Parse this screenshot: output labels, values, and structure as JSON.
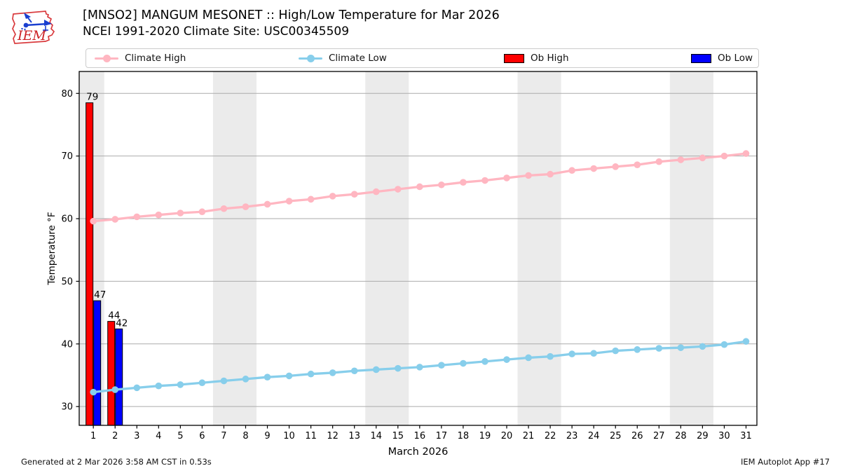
{
  "header": {
    "title": "[MNSO2] MANGUM MESONET :: High/Low Temperature for Mar 2026",
    "subtitle": "NCEI 1991-2020 Climate Site: USC00345509",
    "logo_text": "IEM"
  },
  "legend": [
    {
      "label": "Climate High",
      "type": "line",
      "color": "#ffb6c1"
    },
    {
      "label": "Climate Low",
      "type": "line",
      "color": "#87ceeb"
    },
    {
      "label": "Ob High",
      "type": "patch",
      "color": "#ff0000"
    },
    {
      "label": "Ob Low",
      "type": "patch",
      "color": "#0000ff"
    }
  ],
  "footer": {
    "generated": "Generated at 2 Mar 2026 3:58 AM CST in 0.53s",
    "app": "IEM Autoplot App #17"
  },
  "chart_data": {
    "type": "line+bar",
    "title": "[MNSO2] MANGUM MESONET :: High/Low Temperature for Mar 2026",
    "subtitle": "NCEI 1991-2020 Climate Site: USC00345509",
    "xlabel": "March 2026",
    "ylabel": "Temperature °F",
    "xlim": [
      0.35,
      31.5
    ],
    "ylim": [
      27.0,
      83.5
    ],
    "xticks": [
      1,
      2,
      3,
      4,
      5,
      6,
      7,
      8,
      9,
      10,
      11,
      12,
      13,
      14,
      15,
      16,
      17,
      18,
      19,
      20,
      21,
      22,
      23,
      24,
      25,
      26,
      27,
      28,
      29,
      30,
      31
    ],
    "yticks": [
      30,
      40,
      50,
      60,
      70,
      80
    ],
    "grid": "horizontal",
    "grid_color": "#ababab",
    "weekend_band_color": "#ebebeb",
    "weekend_bands": [
      [
        0.35,
        1.5
      ],
      [
        6.5,
        8.5
      ],
      [
        13.5,
        15.5
      ],
      [
        20.5,
        22.5
      ],
      [
        27.5,
        29.5
      ]
    ],
    "x": [
      1,
      2,
      3,
      4,
      5,
      6,
      7,
      8,
      9,
      10,
      11,
      12,
      13,
      14,
      15,
      16,
      17,
      18,
      19,
      20,
      21,
      22,
      23,
      24,
      25,
      26,
      27,
      28,
      29,
      30,
      31
    ],
    "series": [
      {
        "name": "Climate High",
        "type": "line",
        "color": "#ffb6c1",
        "values": [
          59.6,
          59.9,
          60.3,
          60.6,
          60.9,
          61.1,
          61.6,
          61.9,
          62.3,
          62.8,
          63.1,
          63.6,
          63.9,
          64.3,
          64.7,
          65.1,
          65.4,
          65.8,
          66.1,
          66.5,
          66.9,
          67.1,
          67.7,
          68.0,
          68.3,
          68.6,
          69.1,
          69.4,
          69.7,
          70.0,
          70.4
        ]
      },
      {
        "name": "Climate Low",
        "type": "line",
        "color": "#87ceeb",
        "values": [
          32.3,
          32.7,
          33.0,
          33.3,
          33.5,
          33.8,
          34.1,
          34.4,
          34.7,
          34.9,
          35.2,
          35.4,
          35.7,
          35.9,
          36.1,
          36.3,
          36.6,
          36.9,
          37.2,
          37.5,
          37.8,
          38.0,
          38.4,
          38.5,
          38.9,
          39.1,
          39.3,
          39.4,
          39.6,
          39.9,
          40.4
        ]
      },
      {
        "name": "Ob High",
        "type": "bar",
        "color": "#ff0000",
        "points": [
          {
            "day": 1,
            "label": "79",
            "top": 78.5
          },
          {
            "day": 2,
            "label": "44",
            "top": 43.6
          }
        ]
      },
      {
        "name": "Ob Low",
        "type": "bar",
        "color": "#0000ff",
        "points": [
          {
            "day": 1,
            "label": "47",
            "top": 46.9
          },
          {
            "day": 2,
            "label": "42",
            "top": 42.4
          }
        ]
      }
    ],
    "legend_position": "top, horizontal row above plot"
  }
}
